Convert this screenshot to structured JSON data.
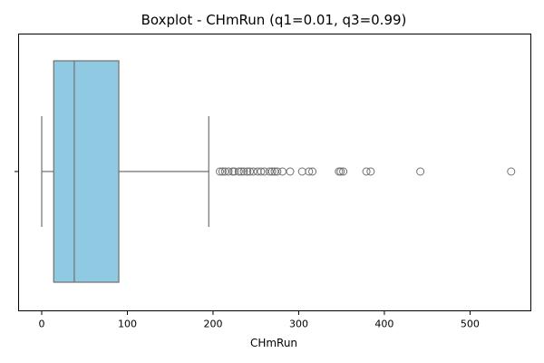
{
  "chart_data": {
    "type": "boxplot",
    "title": "Boxplot - CHmRun (q1=0.01, q3=0.99)",
    "xlabel": "CHmRun",
    "ylabel": "",
    "xlim": [
      -27,
      571
    ],
    "xticks": [
      0,
      100,
      200,
      300,
      400,
      500
    ],
    "xtick_labels": [
      "0",
      "100",
      "200",
      "300",
      "400",
      "500"
    ],
    "grid": false,
    "legend": "none",
    "box": {
      "whisker_low": 0,
      "q1": 14,
      "median": 38,
      "q3": 90,
      "whisker_high": 195
    },
    "outliers": [
      208,
      211,
      214,
      218,
      223,
      225,
      230,
      233,
      236,
      240,
      243,
      247,
      252,
      256,
      260,
      266,
      269,
      272,
      275,
      281,
      290,
      304,
      312,
      316,
      347,
      349,
      352,
      379,
      384,
      442,
      548
    ],
    "colors": {
      "box_fill": "#8fc9e2",
      "box_edge": "#707070",
      "outlier_edge": "#707070",
      "axis": "#000000"
    }
  }
}
